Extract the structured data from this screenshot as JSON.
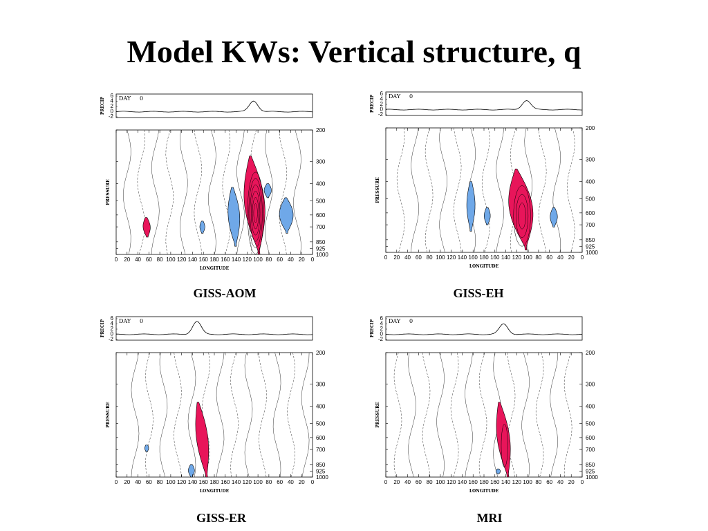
{
  "title": "Model KWs: Vertical structure, q",
  "colors": {
    "positive_fill": "#e8155a",
    "negative_fill": "#6fa8e8",
    "contour": "#333333"
  },
  "chart_data": [
    {
      "type": "contour",
      "caption": "GISS-AOM",
      "day_label": "DAY",
      "day_value": "0",
      "precip": {
        "ylabel": "PRECIP",
        "yticks": [
          "6",
          "4",
          "2",
          "0",
          "-2"
        ],
        "peak_lon_index": 12.6,
        "peak_value": 4.2
      },
      "xlabel": "LONGITUDE",
      "ylabel": "PRESSURE",
      "xticks": [
        "0",
        "20",
        "40",
        "60",
        "80",
        "100",
        "120",
        "140",
        "160",
        "180",
        "160",
        "140",
        "120",
        "100",
        "80",
        "60",
        "40",
        "20",
        "0"
      ],
      "yticks": [
        "200",
        "300",
        "400",
        "500",
        "600",
        "700",
        "850",
        "925",
        "1000"
      ],
      "positive_anomalies": [
        {
          "lon_index": 12.7,
          "p_top": 280,
          "p_bottom": 1000,
          "width": 1.7,
          "tilt": 0.8,
          "levels": 7
        },
        {
          "lon_index": 2.8,
          "p_top": 620,
          "p_bottom": 800,
          "width": 0.5,
          "tilt": 0.1,
          "levels": 1
        }
      ],
      "negative_anomalies": [
        {
          "lon_index": 10.8,
          "p_top": 420,
          "p_bottom": 900,
          "width": 0.9,
          "tilt": 0.3
        },
        {
          "lon_index": 15.6,
          "p_top": 480,
          "p_bottom": 760,
          "width": 1.1,
          "tilt": 0.1
        },
        {
          "lon_index": 13.9,
          "p_top": 400,
          "p_bottom": 480,
          "width": 0.5,
          "tilt": 0.0
        },
        {
          "lon_index": 7.9,
          "p_top": 650,
          "p_bottom": 760,
          "width": 0.3,
          "tilt": 0.0
        }
      ]
    },
    {
      "type": "contour",
      "caption": "GISS-EH",
      "day_label": "DAY",
      "day_value": "0",
      "precip": {
        "ylabel": "PRECIP",
        "yticks": [
          "6",
          "4",
          "2",
          "0",
          "-2"
        ],
        "peak_lon_index": 12.9,
        "peak_value": 3.6
      },
      "xlabel": "LONGITUDE",
      "ylabel": "PRESSURE",
      "xticks": [
        "0",
        "20",
        "40",
        "60",
        "80",
        "100",
        "120",
        "140",
        "160",
        "180",
        "160",
        "140",
        "120",
        "100",
        "80",
        "60",
        "40",
        "20",
        "0"
      ],
      "yticks": [
        "200",
        "300",
        "400",
        "500",
        "600",
        "700",
        "850",
        "925",
        "1000"
      ],
      "positive_anomalies": [
        {
          "lon_index": 12.4,
          "p_top": 340,
          "p_bottom": 970,
          "width": 2.0,
          "tilt": 0.9,
          "levels": 4
        }
      ],
      "negative_anomalies": [
        {
          "lon_index": 7.8,
          "p_top": 400,
          "p_bottom": 760,
          "width": 0.6,
          "tilt": 0.0
        },
        {
          "lon_index": 9.3,
          "p_top": 560,
          "p_bottom": 700,
          "width": 0.4,
          "tilt": 0.0
        },
        {
          "lon_index": 15.4,
          "p_top": 560,
          "p_bottom": 720,
          "width": 0.5,
          "tilt": 0.0
        }
      ]
    },
    {
      "type": "contour",
      "caption": "GISS-ER",
      "day_label": "DAY",
      "day_value": "0",
      "precip": {
        "ylabel": "PRECIP",
        "yticks": [
          "6",
          "4",
          "2",
          "0",
          "-2"
        ],
        "peak_lon_index": 7.4,
        "peak_value": 5.0
      },
      "xlabel": "LONGITUDE",
      "ylabel": "PRESSURE",
      "xticks": [
        "0",
        "20",
        "40",
        "60",
        "80",
        "100",
        "120",
        "140",
        "160",
        "180",
        "160",
        "140",
        "120",
        "100",
        "80",
        "60",
        "40",
        "20",
        "0"
      ],
      "yticks": [
        "200",
        "300",
        "400",
        "500",
        "600",
        "700",
        "850",
        "925",
        "1000"
      ],
      "positive_anomalies": [
        {
          "lon_index": 7.9,
          "p_top": 380,
          "p_bottom": 1000,
          "width": 0.9,
          "tilt": 0.8,
          "levels": 1
        }
      ],
      "negative_anomalies": [
        {
          "lon_index": 2.8,
          "p_top": 660,
          "p_bottom": 720,
          "width": 0.2,
          "tilt": 0.0
        },
        {
          "lon_index": 6.9,
          "p_top": 850,
          "p_bottom": 1000,
          "width": 0.4,
          "tilt": 0.0
        }
      ]
    },
    {
      "type": "contour",
      "caption": "MRI",
      "day_label": "DAY",
      "day_value": "0",
      "precip": {
        "ylabel": "PRECIP",
        "yticks": [
          "6",
          "4",
          "2",
          "0",
          "-2"
        ],
        "peak_lon_index": 10.8,
        "peak_value": 4.0
      },
      "xlabel": "LONGITUDE",
      "ylabel": "PRESSURE",
      "xticks": [
        "0",
        "20",
        "40",
        "60",
        "80",
        "100",
        "120",
        "140",
        "160",
        "180",
        "160",
        "140",
        "120",
        "100",
        "80",
        "60",
        "40",
        "20",
        "0"
      ],
      "yticks": [
        "200",
        "300",
        "400",
        "500",
        "600",
        "700",
        "850",
        "925",
        "1000"
      ],
      "positive_anomalies": [
        {
          "lon_index": 10.8,
          "p_top": 380,
          "p_bottom": 1000,
          "width": 1.0,
          "tilt": 0.8,
          "levels": 2
        }
      ],
      "negative_anomalies": [
        {
          "lon_index": 10.3,
          "p_top": 900,
          "p_bottom": 960,
          "width": 0.25,
          "tilt": 0.0
        }
      ]
    }
  ]
}
